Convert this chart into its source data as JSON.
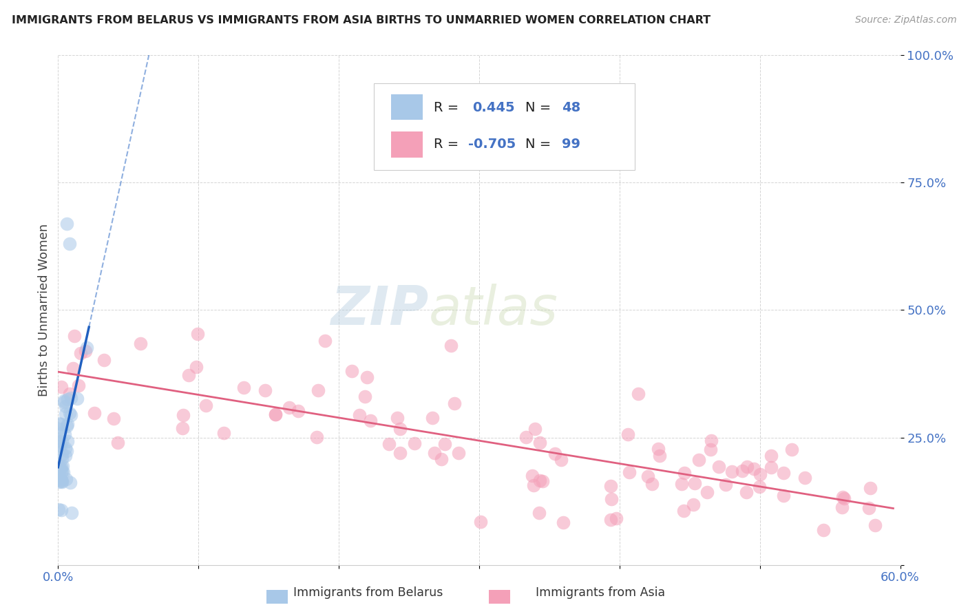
{
  "title": "IMMIGRANTS FROM BELARUS VS IMMIGRANTS FROM ASIA BIRTHS TO UNMARRIED WOMEN CORRELATION CHART",
  "source_text": "Source: ZipAtlas.com",
  "ylabel": "Births to Unmarried Women",
  "xlim": [
    0.0,
    0.6
  ],
  "ylim": [
    0.0,
    1.0
  ],
  "blue_color": "#a8c8e8",
  "pink_color": "#f4a0b8",
  "trend_blue": "#2060c0",
  "trend_pink": "#e06080",
  "watermark_zip": "ZIP",
  "watermark_atlas": "atlas",
  "background_color": "#ffffff",
  "grid_color": "#d0d0d0",
  "tick_color": "#4472c4",
  "title_color": "#222222",
  "source_color": "#999999",
  "ylabel_color": "#444444",
  "legend_text_color": "#222222",
  "legend_val_color": "#4472c4"
}
